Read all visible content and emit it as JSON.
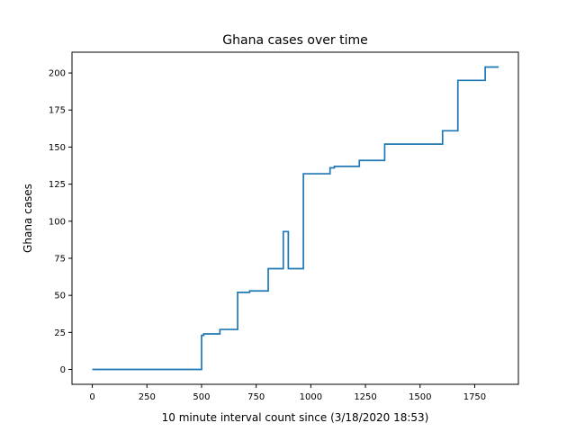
{
  "chart_data": {
    "type": "line",
    "step": "post",
    "title": "Ghana cases over time",
    "xlabel": "10 minute interval count since (3/18/2020 18:53)",
    "ylabel": "Ghana cases",
    "xlim": [
      -93,
      1950
    ],
    "ylim": [
      -10,
      214
    ],
    "xticks": [
      0,
      250,
      500,
      750,
      1000,
      1250,
      1500,
      1750
    ],
    "yticks": [
      0,
      25,
      50,
      75,
      100,
      125,
      150,
      175,
      200
    ],
    "grid": false,
    "legend": "none",
    "series": [
      {
        "color": "#1f77b4",
        "x": [
          0,
          500,
          510,
          584,
          665,
          720,
          805,
          874,
          897,
          966,
          1088,
          1108,
          1222,
          1338,
          1603,
          1673,
          1798,
          1860
        ],
        "y": [
          0,
          23,
          24,
          27,
          52,
          53,
          68,
          93,
          68,
          132,
          136,
          137,
          141,
          152,
          161,
          195,
          204,
          204
        ]
      }
    ]
  }
}
